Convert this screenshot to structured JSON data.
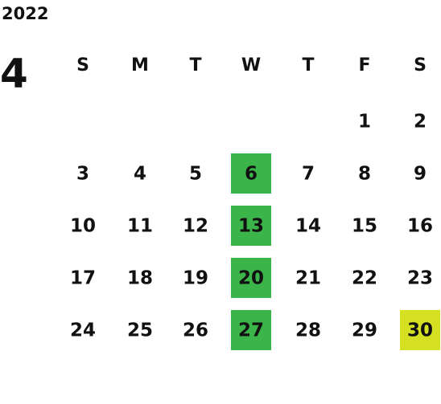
{
  "year": "2022",
  "month": "4",
  "weekdays": [
    "S",
    "M",
    "T",
    "W",
    "T",
    "F",
    "S"
  ],
  "weeks": [
    [
      null,
      null,
      null,
      null,
      null,
      1,
      2
    ],
    [
      3,
      4,
      5,
      6,
      7,
      8,
      9
    ],
    [
      10,
      11,
      12,
      13,
      14,
      15,
      16
    ],
    [
      17,
      18,
      19,
      20,
      21,
      22,
      23
    ],
    [
      24,
      25,
      26,
      27,
      28,
      29,
      30
    ]
  ],
  "highlights": [
    {
      "day": 6,
      "color": "#3bb54a"
    },
    {
      "day": 13,
      "color": "#3bb54a"
    },
    {
      "day": 20,
      "color": "#3bb54a"
    },
    {
      "day": 27,
      "color": "#3bb54a"
    },
    {
      "day": 30,
      "color": "#d4e021"
    }
  ]
}
